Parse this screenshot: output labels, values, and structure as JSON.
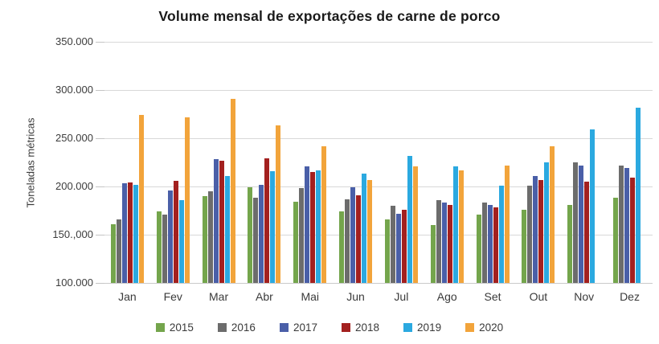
{
  "chart_data": {
    "type": "bar",
    "title": "Volume mensal de exportações de carne de porco",
    "xlabel": "",
    "ylabel": "Toneladas métricas",
    "ylim": [
      100000,
      350000
    ],
    "grid": true,
    "legend_position": "bottom",
    "y_ticks": [
      {
        "label": "350.000",
        "value": 350000
      },
      {
        "label": "300.000",
        "value": 300000
      },
      {
        "label": "250.000",
        "value": 250000
      },
      {
        "label": "200.000",
        "value": 200000
      },
      {
        "label": "150.,000",
        "value": 150000
      },
      {
        "label": "100.000",
        "value": 100000
      }
    ],
    "categories": [
      "Jan",
      "Fev",
      "Mar",
      "Abr",
      "Mai",
      "Jun",
      "Jul",
      "Ago",
      "Set",
      "Out",
      "Nov",
      "Dez"
    ],
    "series": [
      {
        "name": "2015",
        "color": "#74a54c",
        "values": [
          161000,
          174000,
          190000,
          199000,
          184000,
          174000,
          166000,
          160000,
          171000,
          176000,
          181000,
          188000
        ]
      },
      {
        "name": "2016",
        "color": "#6c6c6c",
        "values": [
          166000,
          171000,
          195000,
          188000,
          198000,
          187000,
          180000,
          186000,
          183000,
          201000,
          225000,
          222000
        ]
      },
      {
        "name": "2017",
        "color": "#4a5fa8",
        "values": [
          203000,
          196000,
          228000,
          202000,
          221000,
          199000,
          172000,
          183000,
          181000,
          211000,
          222000,
          219000
        ]
      },
      {
        "name": "2018",
        "color": "#a3201f",
        "values": [
          204000,
          206000,
          227000,
          229000,
          215000,
          191000,
          176000,
          181000,
          178000,
          207000,
          205000,
          209000
        ]
      },
      {
        "name": "2019",
        "color": "#2ba9e0",
        "values": [
          202000,
          186000,
          211000,
          216000,
          217000,
          213000,
          232000,
          221000,
          201000,
          225000,
          259000,
          282000
        ]
      },
      {
        "name": "2020",
        "color": "#f2a43b",
        "values": [
          274000,
          272000,
          291000,
          263000,
          242000,
          207000,
          221000,
          217000,
          222000,
          242000,
          null,
          null
        ]
      }
    ]
  }
}
